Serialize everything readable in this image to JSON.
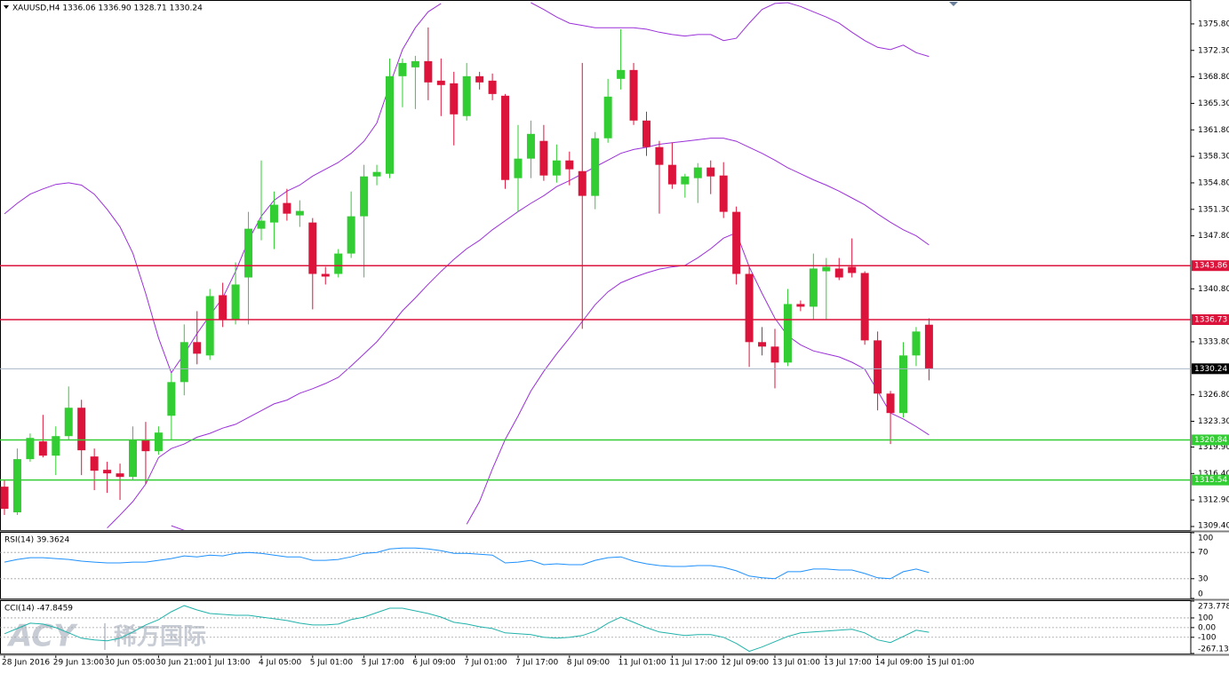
{
  "chart_data": [
    {
      "type": "candlestick",
      "title": "XAUUSD,H4 1336.06 1336.90 1328.71 1330.24",
      "categories": [
        "28 Jun 2016",
        null,
        null,
        null,
        "29 Jun 13:00",
        null,
        null,
        null,
        "30 Jun 05:00",
        null,
        null,
        null,
        "30 Jun 21:00",
        null,
        null,
        null,
        "1 Jul 13:00",
        null,
        null,
        null,
        "4 Jul 05:00",
        null,
        null,
        null,
        "5 Jul 01:00",
        null,
        null,
        null,
        "5 Jul 17:00",
        null,
        null,
        null,
        "6 Jul 09:00",
        null,
        null,
        null,
        "7 Jul 01:00",
        null,
        null,
        null,
        "7 Jul 17:00",
        null,
        null,
        null,
        "8 Jul 09:00",
        null,
        null,
        null,
        "11 Jul 01:00",
        null,
        null,
        null,
        "11 Jul 17:00",
        null,
        null,
        null,
        "12 Jul 09:00",
        null,
        null,
        null,
        "13 Jul 01:00",
        null,
        null,
        null,
        "13 Jul 17:00",
        null,
        null,
        null,
        "14 Jul 09:00",
        null,
        null,
        null,
        "15 Jul 01:00"
      ],
      "open": [
        1314.66,
        1311.27,
        1318.3,
        1320.64,
        1318.76,
        1321.34,
        1325.09,
        1318.65,
        1316.89,
        1316.42,
        1315.95,
        1320.87,
        1319.35,
        1324.03,
        1328.48,
        1333.76,
        1332.0,
        1339.96,
        1336.68,
        1342.3,
        1348.74,
        1349.56,
        1352.14,
        1350.5,
        1349.56,
        1342.77,
        1342.77,
        1345.46,
        1350.38,
        1355.65,
        1356.0,
        1368.89,
        1370.06,
        1370.88,
        1368.3,
        1367.95,
        1363.62,
        1368.89,
        1368.3,
        1366.31,
        1355.42,
        1358.0,
        1360.34,
        1355.77,
        1357.76,
        1356.35,
        1353.08,
        1360.69,
        1368.54,
        1369.71,
        1363.03,
        1359.52,
        1357.18,
        1354.6,
        1355.42,
        1356.83,
        1355.77,
        1350.97,
        1342.77,
        1333.76,
        1333.17,
        1331.06,
        1338.79,
        1338.44,
        1343.12,
        1343.48,
        1343.71,
        1342.89,
        1333.99,
        1326.96,
        1324.39,
        1332.0,
        1336.06
      ],
      "high": [
        1315.6,
        1319.7,
        1321.69,
        1324.15,
        1322.63,
        1327.9,
        1326.14,
        1319.7,
        1317.95,
        1317.71,
        1322.63,
        1323.22,
        1322.63,
        1329.66,
        1336.1,
        1337.85,
        1340.78,
        1341.6,
        1344.29,
        1350.97,
        1357.76,
        1353.66,
        1354.01,
        1352.49,
        1350.15,
        1343.71,
        1346.05,
        1353.66,
        1357.18,
        1357.18,
        1371.23,
        1371.23,
        1371.58,
        1375.33,
        1371.23,
        1369.47,
        1370.64,
        1369.47,
        1369.24,
        1366.54,
        1362.45,
        1363.03,
        1362.45,
        1359.87,
        1358.93,
        1370.64,
        1361.51,
        1368.54,
        1375.09,
        1370.64,
        1364.2,
        1360.34,
        1360.1,
        1356.0,
        1357.41,
        1357.76,
        1357.53,
        1351.67,
        1343.71,
        1335.75,
        1335.51,
        1340.78,
        1339.26,
        1345.46,
        1344.88,
        1344.88,
        1347.46,
        1343.12,
        1335.16,
        1327.31,
        1333.76,
        1335.75,
        1336.9
      ],
      "low": [
        1310.92,
        1310.92,
        1317.95,
        1318.53,
        1316.19,
        1320.87,
        1316.19,
        1314.2,
        1313.84,
        1312.91,
        1315.6,
        1315.02,
        1318.88,
        1320.87,
        1326.73,
        1330.83,
        1331.41,
        1335.75,
        1336.1,
        1336.1,
        1347.22,
        1346.05,
        1349.8,
        1348.98,
        1338.09,
        1341.37,
        1342.3,
        1344.88,
        1342.3,
        1354.48,
        1355.42,
        1364.79,
        1364.55,
        1365.72,
        1363.62,
        1359.75,
        1363.03,
        1367.13,
        1365.72,
        1354.01,
        1350.97,
        1355.42,
        1355.07,
        1354.83,
        1354.48,
        1335.51,
        1351.32,
        1360.1,
        1367.13,
        1362.45,
        1358.35,
        1350.73,
        1354.01,
        1352.84,
        1352.14,
        1353.31,
        1350.15,
        1341.37,
        1330.48,
        1332.0,
        1327.66,
        1330.59,
        1337.85,
        1336.68,
        1336.68,
        1341.95,
        1342.3,
        1333.41,
        1324.74,
        1320.29,
        1323.8,
        1330.59,
        1328.71
      ],
      "close": [
        1311.74,
        1318.3,
        1321.1,
        1318.76,
        1321.34,
        1325.09,
        1319.47,
        1316.77,
        1316.42,
        1315.95,
        1320.87,
        1319.35,
        1321.81,
        1328.48,
        1333.76,
        1332.23,
        1339.84,
        1336.68,
        1341.37,
        1348.74,
        1349.8,
        1351.91,
        1350.73,
        1351.09,
        1342.77,
        1342.42,
        1345.46,
        1350.38,
        1355.65,
        1356.24,
        1368.89,
        1370.64,
        1370.88,
        1368.07,
        1367.72,
        1363.85,
        1368.89,
        1368.07,
        1366.54,
        1355.18,
        1358.0,
        1361.27,
        1355.77,
        1357.76,
        1356.59,
        1353.08,
        1360.69,
        1366.19,
        1369.71,
        1363.03,
        1359.52,
        1357.18,
        1354.6,
        1355.65,
        1356.83,
        1355.65,
        1350.97,
        1342.77,
        1333.76,
        1333.17,
        1331.06,
        1338.79,
        1338.44,
        1343.48,
        1343.71,
        1342.3,
        1342.89,
        1333.99,
        1326.96,
        1324.39,
        1332.0,
        1335.16,
        1330.24
      ],
      "up_color": "#32cd32",
      "down_color": "#dc143c",
      "ylim": [
        1308.93,
        1378.84
      ],
      "yticks": [
        {
          "value": 1375.8,
          "label": "1375.80"
        },
        {
          "value": 1372.3,
          "label": "1372.30"
        },
        {
          "value": 1368.8,
          "label": "1368.80"
        },
        {
          "value": 1365.3,
          "label": "1365.30"
        },
        {
          "value": 1361.8,
          "label": "1361.80"
        },
        {
          "value": 1358.3,
          "label": "1358.30"
        },
        {
          "value": 1354.8,
          "label": "1354.80"
        },
        {
          "value": 1351.3,
          "label": "1351.30"
        },
        {
          "value": 1347.8,
          "label": "1347.80"
        },
        {
          "value": 1340.8,
          "label": "1340.80"
        },
        {
          "value": 1333.8,
          "label": "1333.80"
        },
        {
          "value": 1326.8,
          "label": "1326.80"
        },
        {
          "value": 1323.3,
          "label": "1323.30"
        },
        {
          "value": 1319.9,
          "label": "1319.90"
        },
        {
          "value": 1316.4,
          "label": "1316.40"
        },
        {
          "value": 1312.9,
          "label": "1312.90"
        },
        {
          "value": 1309.4,
          "label": "1309.40"
        }
      ],
      "grid": false,
      "series": [
        {
          "color": "#9b30d9",
          "values": [
            1350.7,
            1352.1,
            1353.3,
            1354.0,
            1354.6,
            1354.8,
            1354.5,
            1353.3,
            1351.3,
            1349.0,
            1345.5,
            1340.2,
            1334.3,
            1329.7,
            1332.2,
            1334.9,
            1337.3,
            1339.6,
            1343.1,
            1347.2,
            1350.4,
            1352.5,
            1353.7,
            1354.5,
            1355.7,
            1356.6,
            1357.5,
            1358.7,
            1360.3,
            1362.7,
            1367.7,
            1372.4,
            1375.3,
            1377.4,
            1378.5,
            null,
            null,
            null,
            null,
            null,
            null,
            1378.6,
            1377.7,
            1376.7,
            1375.9,
            1375.6,
            1375.3,
            1375.3,
            1375.3,
            1375.3,
            1375.1,
            1374.7,
            1374.4,
            1374.2,
            1374.4,
            1374.4,
            1373.6,
            1373.9,
            1375.9,
            1377.7,
            1378.5,
            1378.6,
            1378.1,
            1377.4,
            1376.7,
            1375.9,
            1374.7,
            1373.6,
            1372.7,
            1372.4,
            1373.0,
            1372.0,
            1371.5
          ]
        },
        {
          "color": "#9b30d9",
          "values": [
            null,
            null,
            null,
            null,
            null,
            null,
            null,
            null,
            1309.2,
            1310.9,
            1312.7,
            1315.0,
            1318.5,
            1319.7,
            1320.3,
            1321.2,
            1321.7,
            1322.4,
            1322.9,
            1323.8,
            1324.7,
            1325.6,
            1326.1,
            1327.0,
            1327.6,
            1328.3,
            1329.1,
            1330.6,
            1332.2,
            1333.8,
            1335.8,
            1337.9,
            1339.6,
            1341.4,
            1343.1,
            1344.7,
            1346.1,
            1347.2,
            1348.6,
            1349.8,
            1351.0,
            1352.1,
            1353.1,
            1354.3,
            1355.1,
            1356.0,
            1356.9,
            1357.8,
            1358.7,
            1359.2,
            1359.5,
            1359.9,
            1360.1,
            1360.3,
            1360.5,
            1360.7,
            1360.7,
            1360.3,
            1359.5,
            1358.7,
            1357.8,
            1356.8,
            1356.0,
            1355.2,
            1354.5,
            1353.7,
            1352.8,
            1351.9,
            1350.7,
            1349.6,
            1348.6,
            1347.8,
            1346.6
          ]
        },
        {
          "color": "#9b30d9",
          "values": [
            null,
            null,
            null,
            null,
            null,
            null,
            null,
            null,
            null,
            null,
            null,
            null,
            null,
            1309.5,
            1308.9,
            null,
            null,
            null,
            null,
            null,
            null,
            null,
            null,
            null,
            null,
            null,
            null,
            null,
            null,
            null,
            null,
            null,
            null,
            null,
            null,
            null,
            1309.7,
            1312.7,
            1317.0,
            1320.9,
            1324.0,
            1327.3,
            1329.9,
            1332.2,
            1334.3,
            1336.5,
            1338.7,
            1340.4,
            1341.6,
            1342.3,
            1342.9,
            1343.4,
            1343.7,
            1343.9,
            1344.9,
            1346.1,
            1347.5,
            1348.2,
            1343.7,
            1340.2,
            1336.9,
            1334.6,
            1333.4,
            1332.6,
            1332.2,
            1331.8,
            1331.1,
            1330.2,
            1327.3,
            1324.4,
            1323.6,
            1322.6,
            1321.5
          ]
        }
      ],
      "levels": [
        {
          "value": 1343.86,
          "color": "#dc143c"
        },
        {
          "value": 1336.73,
          "color": "#dc143c"
        },
        {
          "value": 1330.24,
          "color": "#000000",
          "line_color": "#a8b4c8"
        },
        {
          "value": 1320.84,
          "color": "#32cd32"
        },
        {
          "value": 1315.54,
          "color": "#32cd32"
        }
      ]
    },
    {
      "type": "line",
      "title": "RSI(14) 39.3624",
      "color": "#1e90ff",
      "values": [
        55.3,
        59.3,
        62.0,
        62.0,
        60.7,
        59.3,
        56.7,
        55.3,
        54.0,
        54.0,
        55.3,
        55.3,
        58.0,
        60.7,
        64.7,
        63.3,
        66.0,
        64.7,
        68.7,
        70.0,
        68.7,
        66.0,
        63.3,
        63.3,
        58.0,
        58.0,
        59.3,
        63.3,
        68.7,
        70.0,
        75.3,
        76.7,
        76.7,
        75.3,
        72.7,
        68.7,
        68.7,
        67.3,
        66.0,
        54.0,
        55.3,
        58.0,
        51.3,
        52.7,
        51.3,
        51.3,
        58.0,
        62.0,
        63.3,
        56.7,
        52.7,
        50.0,
        48.7,
        48.7,
        50.0,
        50.0,
        47.3,
        42.0,
        34.0,
        31.3,
        30.0,
        40.7,
        40.7,
        44.7,
        44.7,
        43.3,
        43.3,
        38.0,
        31.3,
        30.0,
        40.7,
        44.7,
        39.3624
      ],
      "ylim": [
        0,
        100
      ],
      "yticks": [
        100,
        70,
        30,
        0
      ],
      "grid": true
    },
    {
      "type": "line",
      "title": "CCI(14) -47.8459",
      "color": "#20b2aa",
      "values": [
        -63.6,
        -9.1,
        45.5,
        36.4,
        0,
        -54.5,
        -109.1,
        -127.3,
        -136.4,
        -109.1,
        -45.5,
        27.3,
        81.8,
        163.6,
        227.3,
        181.8,
        145.5,
        136.4,
        127.3,
        127.3,
        109.1,
        90.9,
        72.7,
        45.5,
        27.3,
        27.3,
        36.4,
        81.8,
        109.1,
        154.5,
        200,
        200,
        172.7,
        145.5,
        109.1,
        54.5,
        36.4,
        9.1,
        -9.1,
        -54.5,
        -63.6,
        -72.7,
        -100,
        -109.1,
        -100,
        -81.8,
        -36.4,
        45.5,
        109.1,
        54.5,
        0,
        -45.5,
        -63.6,
        -81.8,
        -72.7,
        -72.7,
        -100,
        -163.6,
        -245.5,
        -200,
        -145.5,
        -90.9,
        -54.5,
        -45.5,
        -36.4,
        -27.3,
        -18.2,
        -54.5,
        -127.3,
        -154.5,
        -90.9,
        -27.3,
        -47.8459
      ],
      "ylim": [
        -267.1304,
        273.778
      ],
      "yticks": [
        273.778,
        100,
        {
          "value": 0,
          "label": "0.00"
        },
        -100,
        -267.1304
      ],
      "grid": true
    }
  ],
  "watermark": {
    "logo": "ACY",
    "text": "稀万国际"
  }
}
